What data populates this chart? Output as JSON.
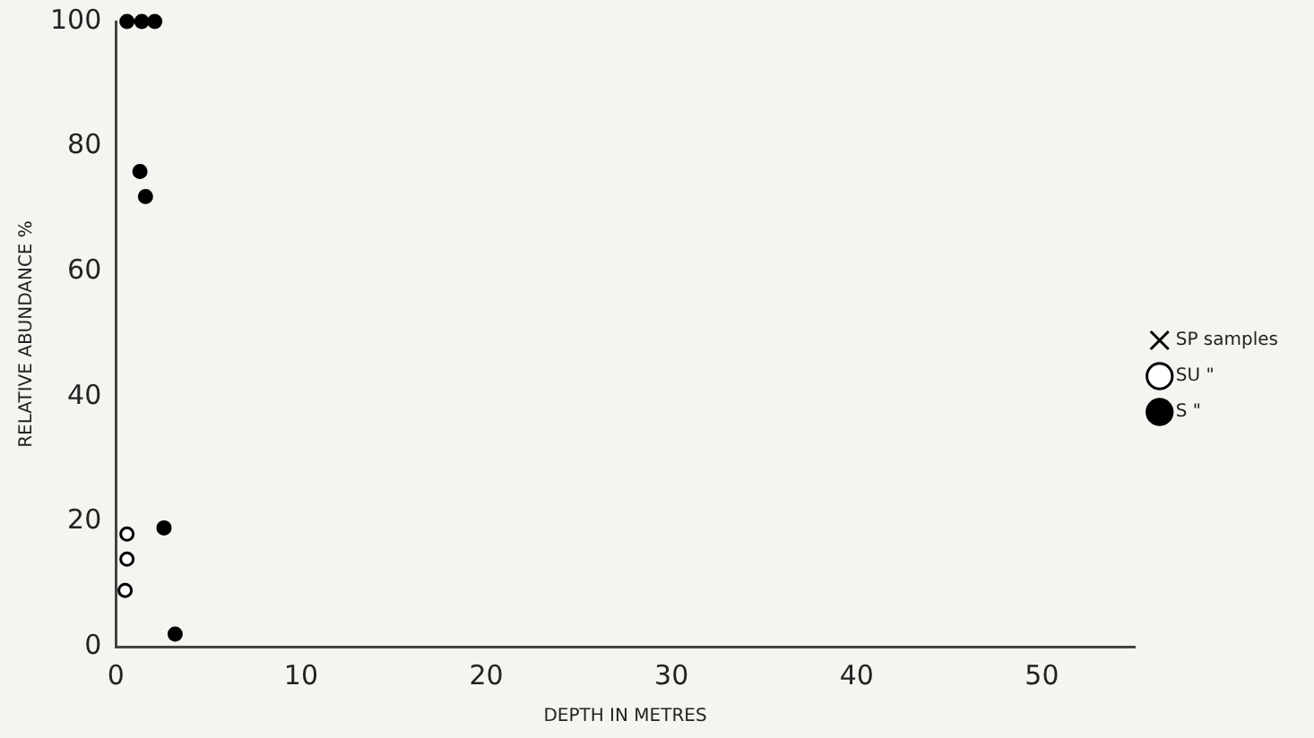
{
  "chart_data": {
    "type": "scatter",
    "xlabel": "DEPTH IN METRES",
    "ylabel": "RELATIVE ABUNDANCE %",
    "xlim": [
      0,
      55
    ],
    "xticks": [
      0,
      10,
      20,
      30,
      40,
      50
    ],
    "ylim": [
      0,
      100
    ],
    "yticks": [
      0,
      20,
      40,
      60,
      80,
      100
    ],
    "grid": false,
    "legend": "right",
    "series": [
      {
        "name": "SP samples",
        "color": "#000000",
        "marker": "cross"
      },
      {
        "name": "SU \"",
        "color": "#ffffff",
        "marker": "circle",
        "x": [
          0.6,
          0.6,
          0.5
        ],
        "values": [
          18,
          14,
          9
        ]
      },
      {
        "name": "S \"",
        "color": "#000000",
        "marker": "circle",
        "x": [
          0.6,
          1.4,
          2.1,
          1.3,
          1.6,
          2.6,
          3.2
        ],
        "values": [
          100,
          100,
          100,
          76,
          72,
          19,
          2
        ]
      }
    ]
  }
}
